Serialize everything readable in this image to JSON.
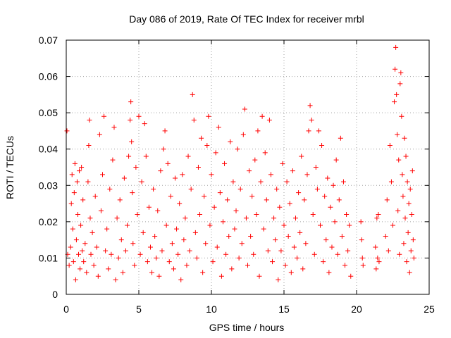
{
  "chart_data": {
    "type": "scatter",
    "title": "Day 086 of 2019, Rate Of TEC Index for receiver mrbl",
    "xlabel": "GPS time / hours",
    "ylabel": "ROTI / TECUs",
    "xlim": [
      0,
      25
    ],
    "ylim": [
      0,
      0.07
    ],
    "xticks": [
      0,
      5,
      10,
      15,
      20,
      25
    ],
    "xtick_labels": [
      "0",
      "5",
      "10",
      "15",
      "20",
      "25"
    ],
    "yticks": [
      0,
      0.01,
      0.02,
      0.03,
      0.04,
      0.05,
      0.06,
      0.07
    ],
    "ytick_labels": [
      "0",
      "0.01",
      "0.02",
      "0.03",
      "0.04",
      "0.05",
      "0.06",
      "0.07"
    ],
    "grid": true,
    "marker": "plus",
    "marker_color": "#ff0000",
    "series": [
      {
        "name": "ROTI",
        "points": [
          [
            0.05,
            0.045
          ],
          [
            0.1,
            0.011
          ],
          [
            0.2,
            0.008
          ],
          [
            0.3,
            0.013
          ],
          [
            0.35,
            0.025
          ],
          [
            0.4,
            0.033
          ],
          [
            0.45,
            0.018
          ],
          [
            0.5,
            0.009
          ],
          [
            0.55,
            0.028
          ],
          [
            0.6,
            0.036
          ],
          [
            0.65,
            0.004
          ],
          [
            0.7,
            0.015
          ],
          [
            0.75,
            0.031
          ],
          [
            0.8,
            0.022
          ],
          [
            0.85,
            0.011
          ],
          [
            0.9,
            0.034
          ],
          [
            0.95,
            0.007
          ],
          [
            1.0,
            0.019
          ],
          [
            1.05,
            0.035
          ],
          [
            1.1,
            0.012
          ],
          [
            1.15,
            0.026
          ],
          [
            1.2,
            0.009
          ],
          [
            1.3,
            0.014
          ],
          [
            1.4,
            0.006
          ],
          [
            1.5,
            0.031
          ],
          [
            1.55,
            0.041
          ],
          [
            1.6,
            0.048
          ],
          [
            1.65,
            0.021
          ],
          [
            1.7,
            0.011
          ],
          [
            1.8,
            0.017
          ],
          [
            1.9,
            0.008
          ],
          [
            2.0,
            0.027
          ],
          [
            2.1,
            0.013
          ],
          [
            2.2,
            0.005
          ],
          [
            2.3,
            0.044
          ],
          [
            2.4,
            0.023
          ],
          [
            2.5,
            0.033
          ],
          [
            2.6,
            0.049
          ],
          [
            2.7,
            0.012
          ],
          [
            2.8,
            0.018
          ],
          [
            2.9,
            0.007
          ],
          [
            3.0,
            0.029
          ],
          [
            3.1,
            0.011
          ],
          [
            3.2,
            0.037
          ],
          [
            3.3,
            0.046
          ],
          [
            3.4,
            0.004
          ],
          [
            3.5,
            0.021
          ],
          [
            3.6,
            0.01
          ],
          [
            3.7,
            0.026
          ],
          [
            3.8,
            0.015
          ],
          [
            3.9,
            0.006
          ],
          [
            4.0,
            0.032
          ],
          [
            4.1,
            0.012
          ],
          [
            4.2,
            0.019
          ],
          [
            4.3,
            0.038
          ],
          [
            4.4,
            0.048
          ],
          [
            4.45,
            0.053
          ],
          [
            4.5,
            0.042
          ],
          [
            4.55,
            0.028
          ],
          [
            4.6,
            0.014
          ],
          [
            4.7,
            0.008
          ],
          [
            4.8,
            0.035
          ],
          [
            4.9,
            0.022
          ],
          [
            5.0,
            0.049
          ],
          [
            5.1,
            0.011
          ],
          [
            5.2,
            0.031
          ],
          [
            5.3,
            0.017
          ],
          [
            5.4,
            0.047
          ],
          [
            5.5,
            0.038
          ],
          [
            5.6,
            0.009
          ],
          [
            5.7,
            0.024
          ],
          [
            5.8,
            0.013
          ],
          [
            5.9,
            0.006
          ],
          [
            6.0,
            0.029
          ],
          [
            6.1,
            0.016
          ],
          [
            6.2,
            0.01
          ],
          [
            6.3,
            0.023
          ],
          [
            6.4,
            0.005
          ],
          [
            6.5,
            0.034
          ],
          [
            6.6,
            0.012
          ],
          [
            6.7,
            0.04
          ],
          [
            6.8,
            0.045
          ],
          [
            6.9,
            0.019
          ],
          [
            7.0,
            0.036
          ],
          [
            7.1,
            0.009
          ],
          [
            7.2,
            0.027
          ],
          [
            7.3,
            0.014
          ],
          [
            7.4,
            0.007
          ],
          [
            7.5,
            0.032
          ],
          [
            7.6,
            0.018
          ],
          [
            7.7,
            0.011
          ],
          [
            7.8,
            0.025
          ],
          [
            7.9,
            0.004
          ],
          [
            8.0,
            0.033
          ],
          [
            8.1,
            0.015
          ],
          [
            8.2,
            0.021
          ],
          [
            8.3,
            0.008
          ],
          [
            8.4,
            0.038
          ],
          [
            8.5,
            0.012
          ],
          [
            8.6,
            0.029
          ],
          [
            8.7,
            0.055
          ],
          [
            8.8,
            0.048
          ],
          [
            8.9,
            0.017
          ],
          [
            9.0,
            0.01
          ],
          [
            9.1,
            0.035
          ],
          [
            9.2,
            0.022
          ],
          [
            9.3,
            0.043
          ],
          [
            9.4,
            0.006
          ],
          [
            9.5,
            0.027
          ],
          [
            9.6,
            0.014
          ],
          [
            9.7,
            0.041
          ],
          [
            9.8,
            0.049
          ],
          [
            9.9,
            0.019
          ],
          [
            10.0,
            0.033
          ],
          [
            10.1,
            0.009
          ],
          [
            10.2,
            0.024
          ],
          [
            10.3,
            0.039
          ],
          [
            10.4,
            0.013
          ],
          [
            10.5,
            0.046
          ],
          [
            10.6,
            0.028
          ],
          [
            10.7,
            0.005
          ],
          [
            10.8,
            0.02
          ],
          [
            10.9,
            0.036
          ],
          [
            11.0,
            0.011
          ],
          [
            11.1,
            0.026
          ],
          [
            11.2,
            0.016
          ],
          [
            11.3,
            0.042
          ],
          [
            11.4,
            0.007
          ],
          [
            11.5,
            0.031
          ],
          [
            11.6,
            0.018
          ],
          [
            11.7,
            0.023
          ],
          [
            11.8,
            0.04
          ],
          [
            11.9,
            0.01
          ],
          [
            12.0,
            0.029
          ],
          [
            12.1,
            0.014
          ],
          [
            12.2,
            0.044
          ],
          [
            12.3,
            0.051
          ],
          [
            12.4,
            0.021
          ],
          [
            12.5,
            0.008
          ],
          [
            12.6,
            0.034
          ],
          [
            12.7,
            0.016
          ],
          [
            12.8,
            0.027
          ],
          [
            12.9,
            0.011
          ],
          [
            13.0,
            0.037
          ],
          [
            13.1,
            0.022
          ],
          [
            13.2,
            0.045
          ],
          [
            13.3,
            0.005
          ],
          [
            13.4,
            0.031
          ],
          [
            13.5,
            0.049
          ],
          [
            13.6,
            0.018
          ],
          [
            13.7,
            0.039
          ],
          [
            13.8,
            0.026
          ],
          [
            13.9,
            0.012
          ],
          [
            14.0,
            0.048
          ],
          [
            14.1,
            0.033
          ],
          [
            14.2,
            0.009
          ],
          [
            14.3,
            0.021
          ],
          [
            14.4,
            0.015
          ],
          [
            14.5,
            0.029
          ],
          [
            14.6,
            0.004
          ],
          [
            14.7,
            0.024
          ],
          [
            14.8,
            0.012
          ],
          [
            14.9,
            0.036
          ],
          [
            15.0,
            0.019
          ],
          [
            15.1,
            0.008
          ],
          [
            15.2,
            0.031
          ],
          [
            15.3,
            0.016
          ],
          [
            15.4,
            0.025
          ],
          [
            15.5,
            0.006
          ],
          [
            15.6,
            0.034
          ],
          [
            15.7,
            0.013
          ],
          [
            15.8,
            0.021
          ],
          [
            15.9,
            0.01
          ],
          [
            16.0,
            0.028
          ],
          [
            16.1,
            0.017
          ],
          [
            16.2,
            0.038
          ],
          [
            16.3,
            0.007
          ],
          [
            16.4,
            0.026
          ],
          [
            16.5,
            0.014
          ],
          [
            16.6,
            0.033
          ],
          [
            16.7,
            0.045
          ],
          [
            16.8,
            0.052
          ],
          [
            16.9,
            0.048
          ],
          [
            17.0,
            0.022
          ],
          [
            17.1,
            0.011
          ],
          [
            17.2,
            0.035
          ],
          [
            17.3,
            0.029
          ],
          [
            17.4,
            0.045
          ],
          [
            17.5,
            0.019
          ],
          [
            17.6,
            0.041
          ],
          [
            17.7,
            0.009
          ],
          [
            17.8,
            0.027
          ],
          [
            17.9,
            0.015
          ],
          [
            18.0,
            0.032
          ],
          [
            18.1,
            0.006
          ],
          [
            18.2,
            0.024
          ],
          [
            18.3,
            0.013
          ],
          [
            18.4,
            0.03
          ],
          [
            18.5,
            0.02
          ],
          [
            18.6,
            0.037
          ],
          [
            18.7,
            0.011
          ],
          [
            18.8,
            0.026
          ],
          [
            18.9,
            0.043
          ],
          [
            19.0,
            0.016
          ],
          [
            19.1,
            0.031
          ],
          [
            19.2,
            0.008
          ],
          [
            19.3,
            0.022
          ],
          [
            19.4,
            0.012
          ],
          [
            19.5,
            0.019
          ],
          [
            19.6,
            0.005
          ],
          [
            20.3,
            0.02
          ],
          [
            20.35,
            0.015
          ],
          [
            20.4,
            0.01
          ],
          [
            20.45,
            0.008
          ],
          [
            21.3,
            0.013
          ],
          [
            21.35,
            0.007
          ],
          [
            21.4,
            0.021
          ],
          [
            21.45,
            0.01
          ],
          [
            21.5,
            0.022
          ],
          [
            21.55,
            0.009
          ],
          [
            22.0,
            0.016
          ],
          [
            22.1,
            0.026
          ],
          [
            22.2,
            0.012
          ],
          [
            22.3,
            0.041
          ],
          [
            22.4,
            0.031
          ],
          [
            22.5,
            0.019
          ],
          [
            22.6,
            0.053
          ],
          [
            22.65,
            0.062
          ],
          [
            22.7,
            0.068
          ],
          [
            22.75,
            0.055
          ],
          [
            22.8,
            0.044
          ],
          [
            22.85,
            0.023
          ],
          [
            22.9,
            0.037
          ],
          [
            22.95,
            0.011
          ],
          [
            23.0,
            0.058
          ],
          [
            23.05,
            0.061
          ],
          [
            23.1,
            0.049
          ],
          [
            23.15,
            0.033
          ],
          [
            23.2,
            0.027
          ],
          [
            23.25,
            0.014
          ],
          [
            23.3,
            0.043
          ],
          [
            23.35,
            0.021
          ],
          [
            23.4,
            0.038
          ],
          [
            23.45,
            0.009
          ],
          [
            23.5,
            0.031
          ],
          [
            23.55,
            0.017
          ],
          [
            23.6,
            0.025
          ],
          [
            23.65,
            0.006
          ],
          [
            23.7,
            0.029
          ],
          [
            23.75,
            0.012
          ],
          [
            23.8,
            0.022
          ],
          [
            23.85,
            0.034
          ],
          [
            23.9,
            0.015
          ],
          [
            23.95,
            0.01
          ]
        ]
      }
    ]
  }
}
